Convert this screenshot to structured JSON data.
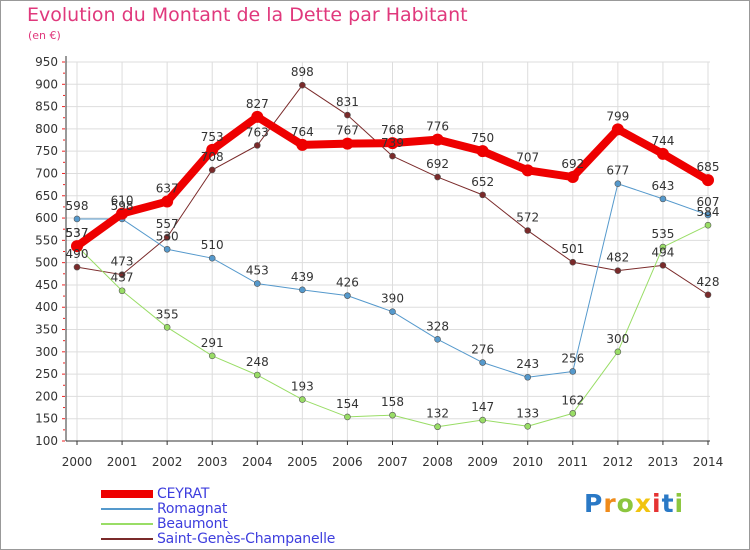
{
  "header": {
    "title": "Evolution du Montant de la Dette par Habitant",
    "unit": "(en €)"
  },
  "logo": {
    "text": "Proxiti",
    "letter_colors": [
      "#2a79c6",
      "#f08b1a",
      "#8cc63e",
      "#f1c40f",
      "#e53333",
      "#2a79c6",
      "#8cc63e"
    ]
  },
  "colors": {
    "title": "#e0387c",
    "legend_text": "#3e3ede",
    "axis": "#333333",
    "grid": "#dddddd",
    "tick_marks": "#ee2222"
  },
  "chart_data": {
    "type": "line",
    "title": "Evolution du Montant de la Dette par Habitant",
    "subtitle": "(en €)",
    "xlabel": "",
    "ylabel": "",
    "x": [
      2000,
      2001,
      2002,
      2003,
      2004,
      2005,
      2006,
      2007,
      2008,
      2009,
      2010,
      2011,
      2012,
      2013,
      2014
    ],
    "ylim": [
      100,
      950
    ],
    "yticks": [
      100,
      150,
      200,
      250,
      300,
      350,
      400,
      450,
      500,
      550,
      600,
      650,
      700,
      750,
      800,
      850,
      900,
      950
    ],
    "grid": true,
    "legend_position": "bottom-left",
    "series": [
      {
        "name": "Saint-Genès-Champanelle",
        "color": "#7a2a2a",
        "width": 1,
        "values": [
          490,
          473,
          557,
          708,
          763,
          898,
          831,
          739,
          692,
          652,
          572,
          501,
          482,
          494,
          428
        ],
        "labels": [
          "490",
          "473",
          "557",
          "708",
          "763",
          "898",
          "831",
          "739",
          "692",
          "652",
          "572",
          "501",
          "482",
          "494",
          "428"
        ]
      },
      {
        "name": "Beaumont",
        "color": "#99dd66",
        "width": 1,
        "values": [
          537,
          437,
          355,
          291,
          248,
          193,
          154,
          158,
          132,
          147,
          133,
          162,
          300,
          535,
          584
        ],
        "labels": [
          "537",
          "437",
          "355",
          "291",
          "248",
          "193",
          "154",
          "158",
          "132",
          "147",
          "133",
          "162",
          "300",
          "535",
          "584"
        ]
      },
      {
        "name": "Romagnat",
        "color": "#5599cc",
        "width": 1,
        "values": [
          598,
          598,
          530,
          510,
          453,
          439,
          426,
          390,
          328,
          276,
          243,
          256,
          677,
          643,
          607
        ],
        "labels": [
          "598",
          "598",
          "530",
          "510",
          "453",
          "439",
          "426",
          "390",
          "328",
          "276",
          "243",
          "256",
          "677",
          "643",
          "607"
        ]
      },
      {
        "name": "CEYRAT",
        "color": "#ee0000",
        "width": 8,
        "values": [
          537,
          610,
          637,
          753,
          827,
          764,
          767,
          768,
          776,
          750,
          707,
          692,
          799,
          744,
          685
        ],
        "labels": [
          "537",
          "610",
          "637",
          "753",
          "827",
          "764",
          "767",
          "768",
          "776",
          "750",
          "707",
          "692",
          "799",
          "744",
          "685"
        ]
      }
    ]
  }
}
